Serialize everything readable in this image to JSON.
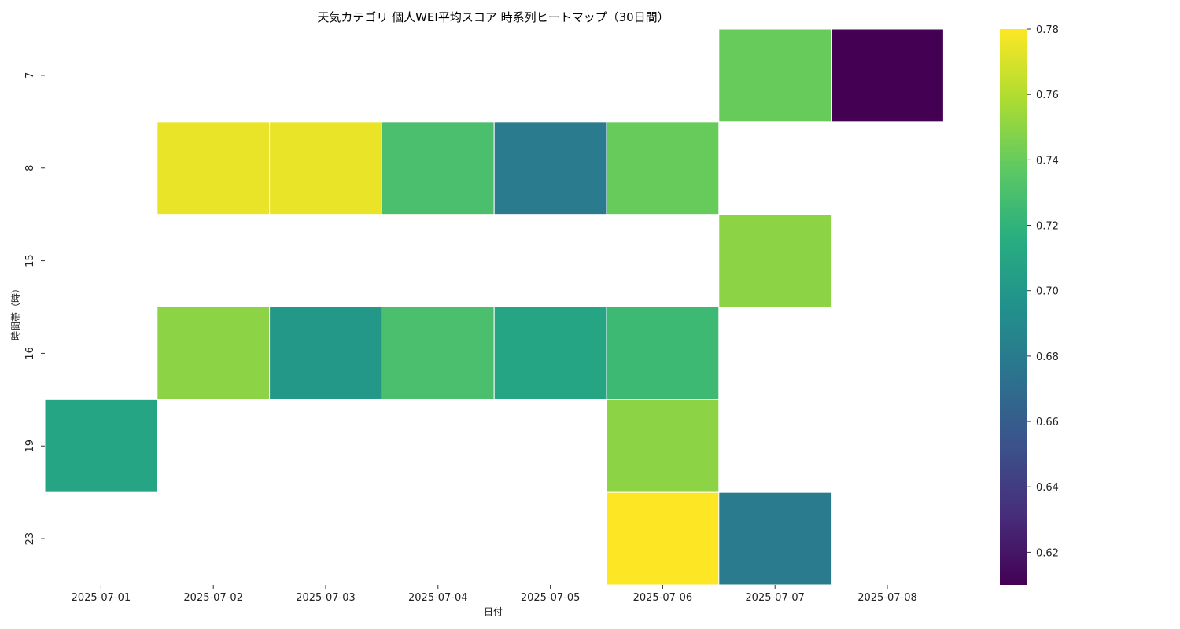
{
  "chart_data": {
    "type": "heatmap",
    "title": "天気カテゴリ 個人WEI平均スコア 時系列ヒートマップ（30日間）",
    "xlabel": "日付",
    "ylabel": "時間帯（時）",
    "x_categories": [
      "2025-07-01",
      "2025-07-02",
      "2025-07-03",
      "2025-07-04",
      "2025-07-05",
      "2025-07-06",
      "2025-07-07",
      "2025-07-08"
    ],
    "y_categories": [
      "7",
      "8",
      "15",
      "16",
      "19",
      "23"
    ],
    "values": [
      [
        null,
        null,
        null,
        null,
        null,
        null,
        0.74,
        0.61
      ],
      [
        null,
        0.775,
        0.775,
        0.73,
        0.68,
        0.74,
        null,
        null
      ],
      [
        null,
        null,
        null,
        null,
        null,
        null,
        0.75,
        null
      ],
      [
        null,
        0.75,
        0.7,
        0.73,
        0.71,
        0.725,
        null,
        null
      ],
      [
        0.71,
        null,
        null,
        null,
        null,
        0.75,
        null,
        null
      ],
      [
        null,
        null,
        null,
        null,
        null,
        0.78,
        0.68,
        null
      ]
    ],
    "colorscale": "viridis",
    "colorbar": {
      "range": [
        0.61,
        0.78
      ],
      "ticks": [
        "0.62",
        "0.64",
        "0.66",
        "0.68",
        "0.70",
        "0.72",
        "0.74",
        "0.76",
        "0.78"
      ]
    }
  }
}
